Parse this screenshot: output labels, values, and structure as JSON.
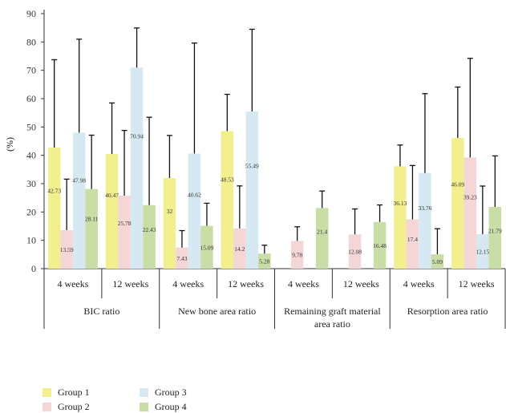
{
  "chart_data": {
    "type": "bar",
    "ylabel": "(%)",
    "ylim": [
      0,
      90
    ],
    "yticks": [
      0,
      10,
      20,
      30,
      40,
      50,
      60,
      70,
      80,
      90
    ],
    "groups": [
      {
        "label": "BIC ratio",
        "clusters": [
          {
            "label": "4 weeks",
            "values": [
              42.73,
              13.59,
              47.98,
              28.11
            ],
            "errors": [
              31,
              18,
              33,
              19
            ]
          },
          {
            "label": "12 weeks",
            "values": [
              40.47,
              25.78,
              70.94,
              22.43
            ],
            "errors": [
              18,
              23,
              14,
              31
            ]
          }
        ]
      },
      {
        "label": "New bone area ratio",
        "clusters": [
          {
            "label": "4 weeks",
            "values": [
              32,
              7.43,
              40.62,
              15.09
            ],
            "errors": [
              15,
              6,
              39,
              8
            ]
          },
          {
            "label": "12 weeks",
            "values": [
              48.53,
              14.2,
              55.49,
              5.28
            ],
            "errors": [
              13,
              15,
              29,
              3
            ]
          }
        ]
      },
      {
        "label_lines": [
          "Remaining graft material",
          "area ratio"
        ],
        "clusters": [
          {
            "label": "4 weeks",
            "values": [
              null,
              9.78,
              null,
              21.4
            ],
            "errors": [
              null,
              5,
              null,
              6
            ]
          },
          {
            "label": "12 weeks",
            "values": [
              null,
              12.08,
              null,
              16.48
            ],
            "errors": [
              null,
              9,
              null,
              6
            ]
          }
        ]
      },
      {
        "label": "Resorption area ratio",
        "clusters": [
          {
            "label": "4 weeks",
            "values": [
              36.13,
              17.4,
              33.76,
              5.09
            ],
            "errors": [
              7.5,
              19,
              28,
              9
            ]
          },
          {
            "label": "12 weeks",
            "values": [
              46.09,
              39.23,
              12.15,
              21.79
            ],
            "errors": [
              18,
              35,
              17,
              18
            ]
          }
        ]
      }
    ],
    "series": [
      {
        "name": "Group 1",
        "color": "#f2f08e"
      },
      {
        "name": "Group 2",
        "color": "#f5d6d6"
      },
      {
        "name": "Group 3",
        "color": "#d6e9f3"
      },
      {
        "name": "Group 4",
        "color": "#c9dda6"
      }
    ],
    "legend_position": "bottom-left",
    "grid": false
  }
}
